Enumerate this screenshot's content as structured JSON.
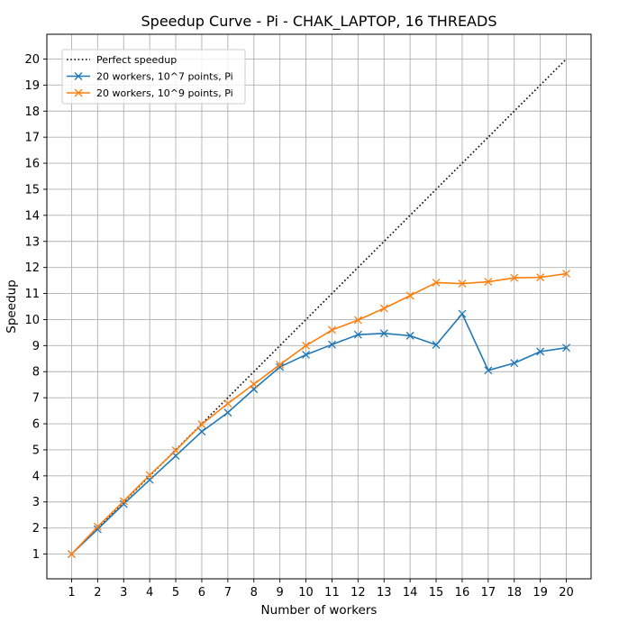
{
  "chart_data": {
    "type": "line",
    "title": "Speedup Curve - Pi - CHAK_LAPTOP, 16 THREADS",
    "xlabel": "Number of workers",
    "ylabel": "Speedup",
    "x": [
      1,
      2,
      3,
      4,
      5,
      6,
      7,
      8,
      9,
      10,
      11,
      12,
      13,
      14,
      15,
      16,
      17,
      18,
      19,
      20
    ],
    "xticks": [
      1,
      2,
      3,
      4,
      5,
      6,
      7,
      8,
      9,
      10,
      11,
      12,
      13,
      14,
      15,
      16,
      17,
      18,
      19,
      20
    ],
    "yticks": [
      1,
      2,
      3,
      4,
      5,
      6,
      7,
      8,
      9,
      10,
      11,
      12,
      13,
      14,
      15,
      16,
      17,
      18,
      19,
      20
    ],
    "xlim": [
      0.05,
      20.95
    ],
    "ylim": [
      0.05,
      20.95
    ],
    "grid": true,
    "legend_position": "top-left",
    "series": [
      {
        "name": "Perfect speedup",
        "color": "#000000",
        "style": "dotted",
        "marker": "none",
        "values": [
          1,
          2,
          3,
          4,
          5,
          6,
          7,
          8,
          9,
          10,
          11,
          12,
          13,
          14,
          15,
          16,
          17,
          18,
          19,
          20
        ]
      },
      {
        "name": "20 workers, 10^7 points, Pi",
        "color": "#1f77b4",
        "style": "solid",
        "marker": "x",
        "values": [
          1.0,
          1.95,
          2.92,
          3.85,
          4.77,
          5.7,
          6.43,
          7.33,
          8.18,
          8.65,
          9.04,
          9.42,
          9.47,
          9.38,
          9.03,
          10.22,
          8.05,
          8.33,
          8.77,
          8.92
        ]
      },
      {
        "name": "20 workers, 10^9 points, Pi",
        "color": "#ff7f0e",
        "style": "solid",
        "marker": "x",
        "values": [
          1.0,
          2.05,
          3.03,
          4.03,
          4.98,
          5.98,
          6.78,
          7.52,
          8.27,
          9.0,
          9.6,
          9.98,
          10.43,
          10.92,
          11.42,
          11.38,
          11.45,
          11.6,
          11.62,
          11.76
        ]
      }
    ]
  }
}
